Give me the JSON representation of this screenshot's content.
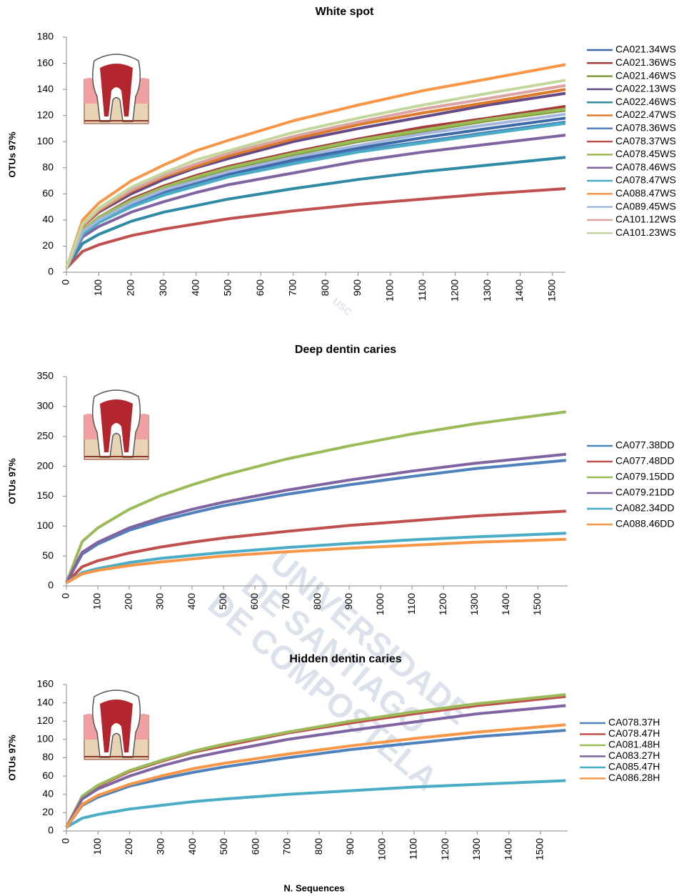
{
  "watermark": {
    "logo": "USC",
    "lines": [
      "UNIVERSIDADE",
      "DE SANTIAGO",
      "DE COMPOSTELA"
    ]
  },
  "chart_data": [
    {
      "type": "line",
      "title": "White spot",
      "y_label": "OTUs 97%",
      "x": [
        0,
        50,
        100,
        200,
        300,
        400,
        500,
        700,
        900,
        1100,
        1300,
        1540
      ],
      "xlim": [
        0,
        1540
      ],
      "xticks": [
        0,
        100,
        200,
        300,
        400,
        500,
        600,
        700,
        800,
        900,
        1000,
        1100,
        1200,
        1300,
        1400,
        1500
      ],
      "ylim": [
        0,
        180
      ],
      "yticks": [
        0,
        20,
        40,
        60,
        80,
        100,
        120,
        140,
        160,
        180
      ],
      "legend": "right",
      "series": [
        {
          "name": "CA021.34WS",
          "color": "#3c6aa8",
          "values": [
            3,
            30,
            39,
            52,
            61,
            69,
            75,
            86,
            95,
            103,
            110,
            118
          ]
        },
        {
          "name": "CA021.36WS",
          "color": "#a33c3a",
          "values": [
            3,
            32,
            42,
            56,
            66,
            74,
            81,
            92,
            102,
            111,
            118,
            127
          ]
        },
        {
          "name": "CA021.46WS",
          "color": "#7d9c3c",
          "values": [
            3,
            31,
            41,
            55,
            64,
            72,
            79,
            90,
            100,
            108,
            116,
            124
          ]
        },
        {
          "name": "CA022.13WS",
          "color": "#654a86",
          "values": [
            3,
            35,
            46,
            60,
            71,
            80,
            87,
            100,
            110,
            119,
            128,
            137
          ]
        },
        {
          "name": "CA022.46WS",
          "color": "#2e8ba3",
          "values": [
            3,
            22,
            29,
            39,
            46,
            51,
            56,
            64,
            71,
            77,
            82,
            88
          ]
        },
        {
          "name": "CA022.47WS",
          "color": "#dc7a2a",
          "values": [
            3,
            35,
            47,
            62,
            73,
            81,
            89,
            102,
            113,
            122,
            130,
            140
          ]
        },
        {
          "name": "CA078.36WS",
          "color": "#4f81bd",
          "values": [
            3,
            29,
            38,
            51,
            60,
            67,
            73,
            84,
            93,
            100,
            107,
            115
          ]
        },
        {
          "name": "CA078.37WS",
          "color": "#c0504d",
          "values": [
            3,
            16,
            21,
            28,
            33,
            37,
            41,
            47,
            52,
            56,
            60,
            64
          ]
        },
        {
          "name": "CA078.45WS",
          "color": "#9bbb59",
          "values": [
            3,
            32,
            42,
            55,
            65,
            73,
            80,
            91,
            101,
            109,
            117,
            125
          ]
        },
        {
          "name": "CA078.46WS",
          "color": "#8064a2",
          "values": [
            3,
            27,
            35,
            46,
            54,
            61,
            67,
            76,
            85,
            92,
            98,
            105
          ]
        },
        {
          "name": "CA078.47WS",
          "color": "#4bacc6",
          "values": [
            3,
            29,
            38,
            50,
            59,
            66,
            73,
            83,
            92,
            99,
            106,
            114
          ]
        },
        {
          "name": "CA088.47WS",
          "color": "#f79646",
          "values": [
            3,
            40,
            53,
            70,
            82,
            93,
            101,
            116,
            128,
            139,
            148,
            159
          ]
        },
        {
          "name": "CA089.45WS",
          "color": "#a5b6de",
          "values": [
            3,
            31,
            40,
            53,
            63,
            70,
            77,
            88,
            97,
            106,
            113,
            121
          ]
        },
        {
          "name": "CA101.12WS",
          "color": "#dba3a2",
          "values": [
            3,
            36,
            48,
            63,
            74,
            83,
            91,
            104,
            115,
            125,
            133,
            143
          ]
        },
        {
          "name": "CA101.23WS",
          "color": "#c3d69b",
          "values": [
            3,
            37,
            49,
            65,
            76,
            86,
            93,
            107,
            118,
            128,
            137,
            147
          ]
        }
      ]
    },
    {
      "type": "line",
      "title": "Deep dentin caries",
      "y_label": "OTUs 97%",
      "x": [
        0,
        50,
        100,
        200,
        300,
        400,
        500,
        700,
        900,
        1100,
        1300,
        1590
      ],
      "xlim": [
        0,
        1595
      ],
      "xticks": [
        0,
        100,
        200,
        300,
        400,
        500,
        600,
        700,
        800,
        900,
        1000,
        1100,
        1200,
        1300,
        1400,
        1500
      ],
      "ylim": [
        0,
        350
      ],
      "yticks": [
        0,
        50,
        100,
        150,
        200,
        250,
        300,
        350
      ],
      "legend": "right",
      "series": [
        {
          "name": "CA077.38DD",
          "color": "#4f81bd",
          "values": [
            5,
            53,
            70,
            93,
            109,
            122,
            134,
            153,
            169,
            183,
            196,
            210
          ]
        },
        {
          "name": "CA077.48DD",
          "color": "#c0504d",
          "values": [
            5,
            32,
            42,
            55,
            65,
            73,
            80,
            91,
            101,
            109,
            117,
            125
          ]
        },
        {
          "name": "CA079.15DD",
          "color": "#9bbb59",
          "values": [
            5,
            74,
            97,
            128,
            151,
            169,
            185,
            212,
            234,
            254,
            271,
            291
          ]
        },
        {
          "name": "CA079.21DD",
          "color": "#8064a2",
          "values": [
            5,
            56,
            73,
            97,
            114,
            128,
            140,
            160,
            177,
            192,
            205,
            220
          ]
        },
        {
          "name": "CA082.34DD",
          "color": "#4bacc6",
          "values": [
            5,
            22,
            29,
            39,
            46,
            51,
            56,
            64,
            71,
            77,
            82,
            88
          ]
        },
        {
          "name": "CA088.46DD",
          "color": "#f79646",
          "values": [
            5,
            20,
            26,
            34,
            40,
            45,
            50,
            57,
            63,
            68,
            73,
            78
          ]
        }
      ]
    },
    {
      "type": "line",
      "title": "Hidden dentin caries",
      "y_label": "OTUs 97%",
      "x_label": "N. Sequences",
      "x": [
        0,
        50,
        100,
        200,
        300,
        400,
        500,
        700,
        900,
        1100,
        1300,
        1580
      ],
      "xlim": [
        0,
        1586
      ],
      "xticks": [
        0,
        100,
        200,
        300,
        400,
        500,
        600,
        700,
        800,
        900,
        1000,
        1100,
        1200,
        1300,
        1400,
        1500
      ],
      "ylim": [
        0,
        160
      ],
      "yticks": [
        0,
        20,
        40,
        60,
        80,
        100,
        120,
        140,
        160
      ],
      "legend": "right",
      "series": [
        {
          "name": "CA078.37H",
          "color": "#4f81bd",
          "values": [
            4,
            28,
            37,
            49,
            57,
            64,
            70,
            80,
            89,
            96,
            103,
            110
          ]
        },
        {
          "name": "CA078.47H",
          "color": "#c0504d",
          "values": [
            4,
            37,
            49,
            65,
            76,
            86,
            93,
            107,
            118,
            128,
            137,
            147
          ]
        },
        {
          "name": "CA081.48H",
          "color": "#9bbb59",
          "values": [
            4,
            38,
            50,
            66,
            77,
            87,
            95,
            108,
            120,
            130,
            139,
            149
          ]
        },
        {
          "name": "CA083.27H",
          "color": "#8064a2",
          "values": [
            4,
            35,
            46,
            60,
            71,
            80,
            87,
            100,
            110,
            119,
            128,
            137
          ]
        },
        {
          "name": "CA085.47H",
          "color": "#4bacc6",
          "values": [
            4,
            14,
            18,
            24,
            28,
            32,
            35,
            40,
            44,
            48,
            51,
            55
          ]
        },
        {
          "name": "CA086.28H",
          "color": "#f79646",
          "values": [
            4,
            29,
            39,
            51,
            60,
            68,
            74,
            84,
            93,
            101,
            108,
            116
          ]
        }
      ]
    }
  ]
}
